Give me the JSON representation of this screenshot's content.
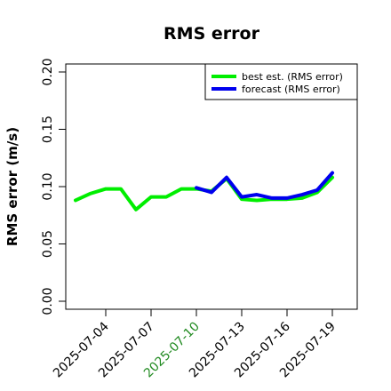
{
  "chart_data": {
    "type": "line",
    "title": "RMS error",
    "xlabel": "",
    "ylabel": "RMS error (m/s)",
    "ylim": [
      0,
      0.2
    ],
    "yticks": [
      "0.00",
      "0.05",
      "0.10",
      "0.15",
      "0.20"
    ],
    "x_ticks": [
      {
        "label": "2025-07-04",
        "day": 4,
        "color": "#000000"
      },
      {
        "label": "2025-07-07",
        "day": 7,
        "color": "#000000"
      },
      {
        "label": "2025-07-10",
        "day": 10,
        "color": "#228B22"
      },
      {
        "label": "2025-07-13",
        "day": 13,
        "color": "#000000"
      },
      {
        "label": "2025-07-16",
        "day": 16,
        "color": "#000000"
      },
      {
        "label": "2025-07-19",
        "day": 19,
        "color": "#000000"
      }
    ],
    "legend_position": "top-right",
    "grid": false,
    "series": [
      {
        "name": "best est. (RMS error)",
        "color": "#00EE00",
        "x": [
          "2025-07-02",
          "2025-07-03",
          "2025-07-04",
          "2025-07-05",
          "2025-07-06",
          "2025-07-07",
          "2025-07-08",
          "2025-07-09",
          "2025-07-10",
          "2025-07-11",
          "2025-07-12",
          "2025-07-13",
          "2025-07-14",
          "2025-07-15",
          "2025-07-16",
          "2025-07-17",
          "2025-07-18",
          "2025-07-19"
        ],
        "values": [
          0.088,
          0.094,
          0.098,
          0.098,
          0.08,
          0.091,
          0.091,
          0.098,
          0.098,
          0.096,
          0.107,
          0.089,
          0.088,
          0.089,
          0.089,
          0.09,
          0.095,
          0.108
        ]
      },
      {
        "name": "forecast (RMS error)",
        "color": "#0000EE",
        "x": [
          "2025-07-10",
          "2025-07-11",
          "2025-07-12",
          "2025-07-13",
          "2025-07-14",
          "2025-07-15",
          "2025-07-16",
          "2025-07-17",
          "2025-07-18",
          "2025-07-19"
        ],
        "values": [
          0.099,
          0.095,
          0.108,
          0.091,
          0.093,
          0.09,
          0.09,
          0.093,
          0.097,
          0.112
        ]
      }
    ]
  }
}
